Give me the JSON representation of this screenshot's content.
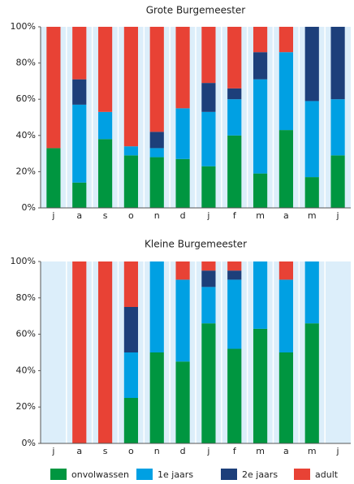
{
  "chart_data": [
    {
      "type": "bar",
      "stacked": true,
      "title": "Grote Burgemeester",
      "categories": [
        "j",
        "a",
        "s",
        "o",
        "n",
        "d",
        "j",
        "f",
        "m",
        "a",
        "m",
        "j"
      ],
      "series": [
        {
          "name": "onvolwassen",
          "color": "#009640",
          "values": [
            33,
            14,
            38,
            29,
            28,
            27,
            23,
            40,
            19,
            43,
            17,
            29
          ]
        },
        {
          "name": "1e jaars",
          "color": "#00a0e3",
          "values": [
            0,
            43,
            15,
            5,
            5,
            28,
            30,
            20,
            52,
            43,
            42,
            31
          ]
        },
        {
          "name": "2e jaars",
          "color": "#1d3f7a",
          "values": [
            0,
            14,
            0,
            0,
            9,
            0,
            16,
            6,
            15,
            0,
            41,
            40
          ]
        },
        {
          "name": "adult",
          "color": "#e84235",
          "values": [
            67,
            29,
            47,
            66,
            58,
            45,
            31,
            34,
            14,
            14,
            0,
            0
          ]
        }
      ],
      "ylim": [
        0,
        100
      ],
      "yticks": [
        {
          "value": 0,
          "label": "0%"
        },
        {
          "value": 20,
          "label": "20%"
        },
        {
          "value": 40,
          "label": "40%"
        },
        {
          "value": 60,
          "label": "60%"
        },
        {
          "value": 80,
          "label": "80%"
        },
        {
          "value": 100,
          "label": "100%"
        }
      ]
    },
    {
      "type": "bar",
      "stacked": true,
      "title": "Kleine Burgemeester",
      "categories": [
        "j",
        "a",
        "s",
        "o",
        "n",
        "d",
        "j",
        "f",
        "m",
        "a",
        "m",
        "j"
      ],
      "series": [
        {
          "color": "#009640",
          "values": [
            0,
            0,
            0,
            25,
            50,
            45,
            66,
            52,
            63,
            50,
            66,
            0
          ]
        },
        {
          "color": "#00a0e3",
          "values": [
            0,
            0,
            0,
            25,
            50,
            45,
            20,
            38,
            37,
            40,
            34,
            0
          ]
        },
        {
          "color": "#1d3f7a",
          "values": [
            0,
            0,
            0,
            25,
            0,
            0,
            9,
            5,
            0,
            0,
            0,
            0
          ]
        },
        {
          "color": "#e84235",
          "values": [
            0,
            100,
            100,
            25,
            0,
            10,
            5,
            5,
            0,
            10,
            0,
            0
          ]
        }
      ],
      "ylim": [
        0,
        100
      ],
      "yticks": [
        {
          "value": 0,
          "label": "0%"
        },
        {
          "value": 20,
          "label": "20%"
        },
        {
          "value": 40,
          "label": "40%"
        },
        {
          "value": 60,
          "label": "60%"
        },
        {
          "value": 80,
          "label": "80%"
        },
        {
          "value": 100,
          "label": "100%"
        }
      ]
    }
  ]
}
